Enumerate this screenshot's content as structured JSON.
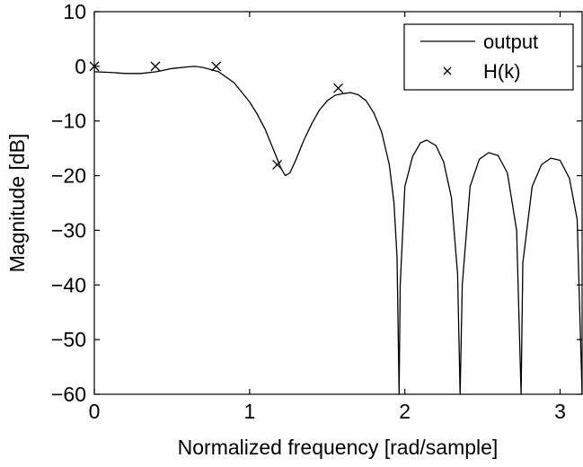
{
  "chart_data": {
    "type": "line",
    "title": "",
    "xlabel": "Normalized frequency [rad/sample]",
    "ylabel": "Magnitude [dB]",
    "xlim": [
      0,
      3.1416
    ],
    "ylim": [
      -60,
      10
    ],
    "xticks": [
      0,
      1,
      2,
      3
    ],
    "yticks": [
      10,
      0,
      -10,
      -20,
      -30,
      -40,
      -50,
      -60
    ],
    "xtick_labels": [
      "0",
      "1",
      "2",
      "3"
    ],
    "ytick_labels": [
      "10",
      "0",
      "−10",
      "−20",
      "−30",
      "−40",
      "−50",
      "−60"
    ],
    "grid": false,
    "legend_position": "top-right",
    "series": [
      {
        "name": "output",
        "style": "line",
        "color": "#000000",
        "x": [
          0,
          0.1,
          0.2,
          0.3,
          0.4,
          0.5,
          0.6,
          0.65,
          0.7,
          0.8,
          0.9,
          1.0,
          1.05,
          1.1,
          1.15,
          1.2,
          1.23,
          1.26,
          1.3,
          1.35,
          1.4,
          1.45,
          1.5,
          1.55,
          1.6,
          1.65,
          1.7,
          1.75,
          1.8,
          1.85,
          1.9,
          1.93,
          1.95,
          1.963,
          1.97,
          2.0,
          2.05,
          2.1,
          2.14,
          2.2,
          2.25,
          2.3,
          2.34,
          2.356,
          2.37,
          2.42,
          2.48,
          2.54,
          2.6,
          2.66,
          2.72,
          2.749,
          2.76,
          2.82,
          2.88,
          2.94,
          3.0,
          3.06,
          3.11,
          3.1416
        ],
        "y": [
          -1.0,
          -1.1,
          -1.3,
          -1.3,
          -1.0,
          -0.4,
          -0.1,
          0.0,
          -0.2,
          -1.0,
          -3.0,
          -6.5,
          -8.8,
          -11.5,
          -15.0,
          -18.5,
          -20.0,
          -19.5,
          -17.0,
          -13.5,
          -10.5,
          -8.0,
          -6.3,
          -5.3,
          -5.0,
          -4.8,
          -5.2,
          -6.3,
          -8.5,
          -12.0,
          -18.0,
          -25.0,
          -35.0,
          -60.0,
          -40.0,
          -22.0,
          -16.5,
          -14.0,
          -13.5,
          -14.5,
          -17.5,
          -24.0,
          -38.0,
          -60.0,
          -40.0,
          -22.0,
          -17.0,
          -15.8,
          -16.3,
          -19.5,
          -30.0,
          -60.0,
          -36.0,
          -22.0,
          -18.0,
          -16.8,
          -17.2,
          -20.5,
          -28.0,
          -60.0
        ]
      },
      {
        "name": "H(k)",
        "style": "marker",
        "marker": "x",
        "color": "#000000",
        "x": [
          0,
          0.393,
          0.785,
          1.178,
          1.571
        ],
        "y": [
          0,
          0,
          0,
          -18,
          -4
        ]
      }
    ]
  }
}
